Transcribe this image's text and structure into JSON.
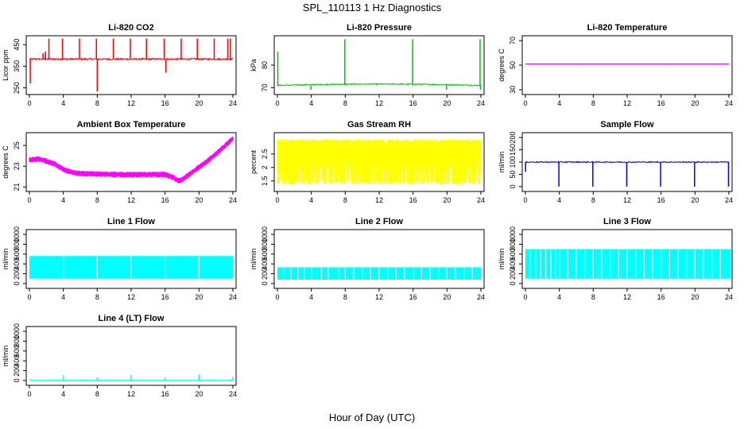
{
  "figure": {
    "title": "SPL_110113  1 Hz Diagnostics",
    "xlabel": "Hour of Day (UTC)"
  },
  "chart_data": [
    {
      "id": "co2",
      "type": "line",
      "title": "Li-820 CO2",
      "ylabel": "Licor ppm",
      "color": "#ff0000",
      "xlim": [
        0,
        24
      ],
      "ylim": [
        230,
        480
      ],
      "xticks": [
        0,
        4,
        8,
        12,
        16,
        20,
        24
      ],
      "yticks": [
        250,
        350,
        450
      ],
      "baseline": 383,
      "noise": 4,
      "spikes": [
        {
          "x": 1.6,
          "y": 410
        },
        {
          "x": 1.9,
          "y": 418
        },
        {
          "x": 2.3,
          "y": 478
        },
        {
          "x": 3.9,
          "y": 478
        },
        {
          "x": 5.9,
          "y": 478
        },
        {
          "x": 7.9,
          "y": 478
        },
        {
          "x": 9.9,
          "y": 478
        },
        {
          "x": 11.9,
          "y": 478
        },
        {
          "x": 13.8,
          "y": 478
        },
        {
          "x": 15.9,
          "y": 478
        },
        {
          "x": 17.9,
          "y": 478
        },
        {
          "x": 19.8,
          "y": 478
        },
        {
          "x": 21.8,
          "y": 478
        },
        {
          "x": 23.4,
          "y": 478
        },
        {
          "x": 23.7,
          "y": 478
        }
      ],
      "dips": [
        {
          "x": 0.1,
          "y": 270
        },
        {
          "x": 8.0,
          "y": 233
        },
        {
          "x": 16.1,
          "y": 320
        }
      ]
    },
    {
      "id": "pressure",
      "type": "line",
      "title": "Li-820 Pressure",
      "ylabel": "kPa",
      "color": "#00c800",
      "xlim": [
        0,
        24
      ],
      "ylim": [
        68,
        92
      ],
      "xticks": [
        0,
        4,
        8,
        12,
        16,
        20,
        24
      ],
      "yticks": [
        70,
        80
      ],
      "baseline": 71.0,
      "noise": 0.25,
      "hump": 0.6,
      "spikes": [
        {
          "x": 0.05,
          "y": 86
        },
        {
          "x": 7.95,
          "y": 91.5
        },
        {
          "x": 15.95,
          "y": 91.5
        },
        {
          "x": 23.9,
          "y": 91.5
        }
      ],
      "dips": [
        {
          "x": 3.95,
          "y": 69.0
        },
        {
          "x": 19.95,
          "y": 69.0
        },
        {
          "x": 23.95,
          "y": 69.0
        }
      ]
    },
    {
      "id": "licor_temp",
      "type": "line",
      "title": "Li-820 Temperature",
      "ylabel": "degrees C",
      "color": "#ff00ff",
      "xlim": [
        0,
        24
      ],
      "ylim": [
        28,
        72
      ],
      "xticks": [
        0,
        4,
        8,
        12,
        16,
        20,
        24
      ],
      "yticks": [
        30,
        50,
        70
      ],
      "baseline": 51.0,
      "noise": 0
    },
    {
      "id": "box_temp",
      "type": "band",
      "title": "Ambient Box Temperature",
      "ylabel": "degrees C",
      "color": "#ff00ff",
      "xlim": [
        0,
        24
      ],
      "ylim": [
        20.8,
        26.0
      ],
      "xticks": [
        0,
        4,
        8,
        12,
        16,
        20,
        24
      ],
      "yticks": [
        21,
        23,
        25
      ],
      "x": [
        0,
        1,
        2,
        3,
        4,
        5,
        6,
        8,
        10,
        12,
        14,
        16,
        17,
        17.5,
        18,
        19,
        20,
        21,
        22,
        23,
        24
      ],
      "y": [
        23.6,
        23.7,
        23.5,
        23.2,
        22.7,
        22.4,
        22.3,
        22.25,
        22.2,
        22.2,
        22.2,
        22.2,
        21.9,
        21.6,
        21.7,
        22.3,
        22.9,
        23.5,
        24.2,
        24.9,
        25.7
      ],
      "band": 0.55
    },
    {
      "id": "rh",
      "type": "noise",
      "title": "Gas Stream RH",
      "ylabel": "percent",
      "color": "#ffff00",
      "xlim": [
        0,
        24
      ],
      "ylim": [
        1.2,
        3.2
      ],
      "xticks": [
        0,
        4,
        8,
        12,
        16,
        20,
        24
      ],
      "yticks": [
        1.5,
        2.0,
        2.5
      ],
      "ymin": 1.35,
      "ymax": 3.05
    },
    {
      "id": "sample_flow",
      "type": "line",
      "title": "Sample Flow",
      "ylabel": "ml/min",
      "color": "#0000ff",
      "xlim": [
        0,
        24
      ],
      "ylim": [
        -10,
        210
      ],
      "xticks": [
        0,
        4,
        8,
        12,
        16,
        20,
        24
      ],
      "yticks": [
        0,
        50,
        100,
        150,
        200
      ],
      "baseline": 100,
      "noise": 2,
      "dips": [
        {
          "x": 0.02,
          "y": 60
        },
        {
          "x": 3.95,
          "y": 0
        },
        {
          "x": 7.95,
          "y": 0
        },
        {
          "x": 11.95,
          "y": 0
        },
        {
          "x": 15.95,
          "y": 0
        },
        {
          "x": 19.95,
          "y": 0
        },
        {
          "x": 23.95,
          "y": 0
        }
      ]
    },
    {
      "id": "line1",
      "type": "pulse",
      "title": "Line 1 Flow",
      "ylabel": "ml/min",
      "color": "#00ffff",
      "xlim": [
        0,
        24
      ],
      "ylim": [
        -50,
        1050
      ],
      "xticks": [
        0,
        4,
        8,
        12,
        16,
        20,
        24
      ],
      "yticks": [
        0,
        200,
        400,
        600,
        800,
        1000
      ],
      "low": 100,
      "high": 560,
      "xend": 24,
      "gaps": [
        4,
        8,
        12,
        16,
        20
      ]
    },
    {
      "id": "line2",
      "type": "pulse",
      "title": "Line 2 Flow",
      "ylabel": "ml/min",
      "color": "#00ffff",
      "xlim": [
        0,
        24
      ],
      "ylim": [
        -50,
        1050
      ],
      "xticks": [
        0,
        4,
        8,
        12,
        16,
        20,
        24
      ],
      "yticks": [
        0,
        200,
        400,
        600,
        800,
        1000
      ],
      "low": 80,
      "high": 330,
      "xend": 24,
      "gaps": [
        0.8,
        1.6,
        2.4,
        3.2,
        4,
        5.2,
        6,
        7.2,
        8,
        9,
        10,
        11,
        12,
        13,
        14,
        15,
        16,
        17,
        18,
        19,
        20,
        21,
        22,
        23
      ]
    },
    {
      "id": "line3",
      "type": "pulse",
      "title": "Line 3 Flow",
      "ylabel": "ml/min",
      "color": "#00ffff",
      "xlim": [
        0,
        24
      ],
      "ylim": [
        -50,
        1050
      ],
      "xticks": [
        0,
        4,
        8,
        12,
        16,
        20,
        24
      ],
      "yticks": [
        0,
        200,
        400,
        600,
        800,
        1000
      ],
      "low": 100,
      "high": 700,
      "xend": 24.2,
      "gaps": [
        0.6,
        1.2,
        1.8,
        2.4,
        3.0,
        3.6,
        4,
        5,
        6,
        7,
        8,
        9,
        10,
        11,
        12,
        13,
        14,
        15,
        16,
        17,
        18,
        19,
        20,
        21,
        22,
        23
      ]
    },
    {
      "id": "line4",
      "type": "line",
      "title": "Line 4 (LT) Flow",
      "ylabel": "ml/min",
      "color": "#00ffff",
      "xlim": [
        0,
        24
      ],
      "ylim": [
        -50,
        1050
      ],
      "xticks": [
        0,
        4,
        8,
        12,
        16,
        20,
        24
      ],
      "yticks": [
        0,
        200,
        400,
        600,
        800,
        1000
      ],
      "baseline": 5,
      "noise": 2,
      "spikes": [
        {
          "x": 4.0,
          "y": 110
        },
        {
          "x": 8.0,
          "y": 60
        },
        {
          "x": 12.0,
          "y": 110
        },
        {
          "x": 16.0,
          "y": 60
        },
        {
          "x": 20.0,
          "y": 120
        },
        {
          "x": 24.0,
          "y": 70
        }
      ]
    }
  ]
}
